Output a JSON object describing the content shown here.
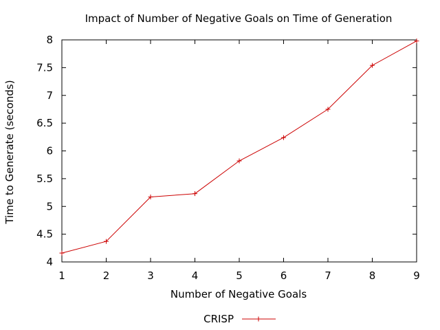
{
  "chart_data": {
    "type": "line",
    "title": "Impact of Number of Negative Goals on Time of Generation",
    "xlabel": "Number of Negative Goals",
    "ylabel": "Time to Generate (seconds)",
    "xlim": [
      1,
      9
    ],
    "ylim": [
      4,
      8
    ],
    "xticks": [
      1,
      2,
      3,
      4,
      5,
      6,
      7,
      8,
      9
    ],
    "yticks": [
      4,
      4.5,
      5,
      5.5,
      6,
      6.5,
      7,
      7.5,
      8
    ],
    "grid": false,
    "legend_position": "bottom-center",
    "series": [
      {
        "name": "CRISP",
        "color": "#cc0000",
        "marker": "plus",
        "x": [
          1,
          2,
          3,
          4,
          5,
          6,
          7,
          8,
          9
        ],
        "y": [
          4.16,
          4.37,
          5.17,
          5.23,
          5.82,
          6.24,
          6.75,
          7.54,
          7.98
        ]
      }
    ]
  }
}
